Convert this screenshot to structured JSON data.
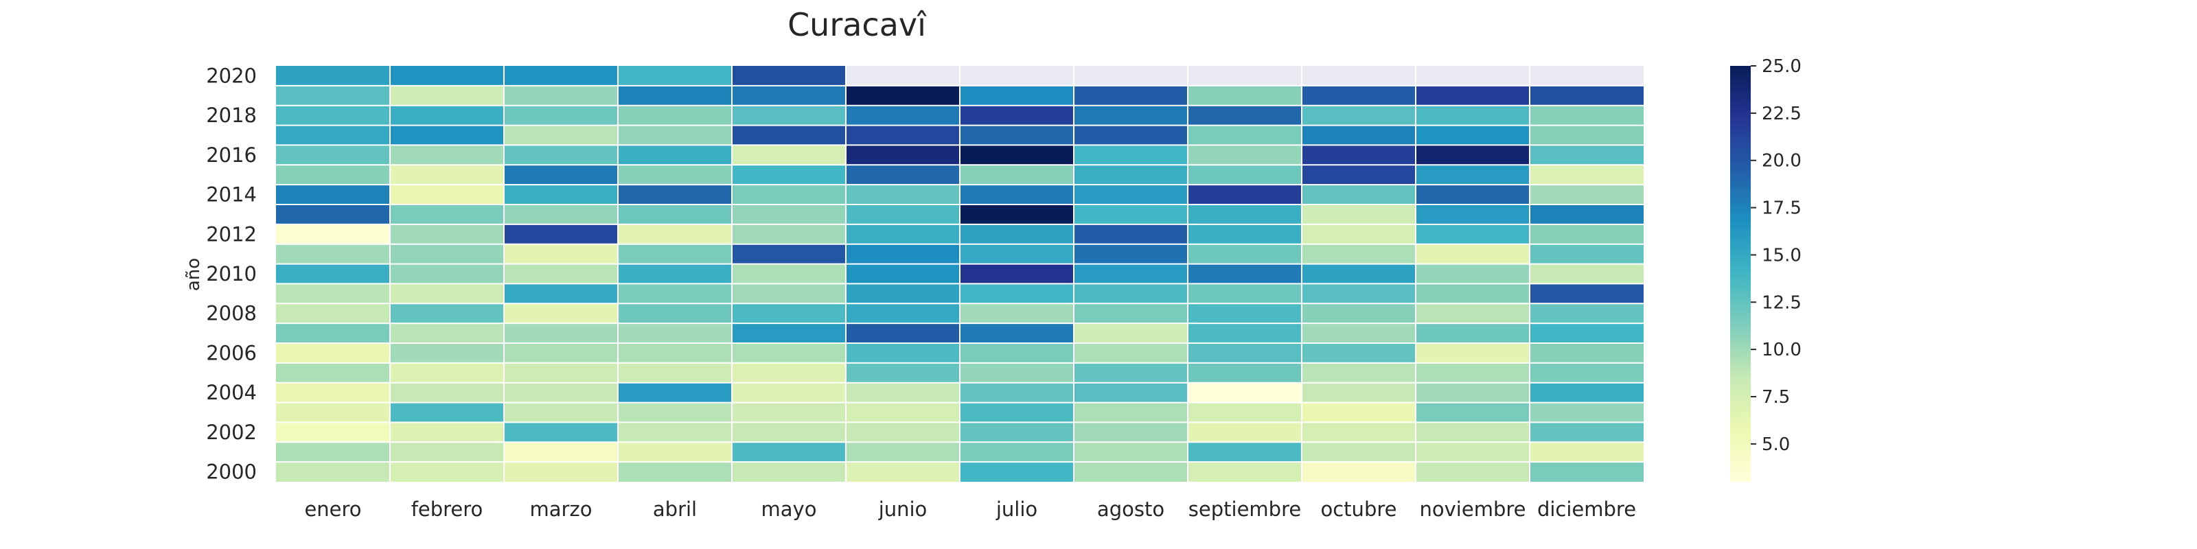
{
  "chart_data": {
    "type": "heatmap",
    "title": "Curacavî",
    "xlabel": "",
    "ylabel": "año",
    "months": [
      "enero",
      "febrero",
      "marzo",
      "abril",
      "mayo",
      "junio",
      "julio",
      "agosto",
      "septiembre",
      "octubre",
      "noviembre",
      "diciembre"
    ],
    "years": [
      2020,
      2019,
      2018,
      2017,
      2016,
      2015,
      2014,
      2013,
      2012,
      2011,
      2010,
      2009,
      2008,
      2007,
      2006,
      2005,
      2004,
      2003,
      2002,
      2001,
      2000
    ],
    "y_tick_labels": [
      "2020",
      "2018",
      "2016",
      "2014",
      "2012",
      "2010",
      "2008",
      "2006",
      "2004",
      "2002",
      "2000"
    ],
    "color_scale": "YlGnBu",
    "vmin": 3.0,
    "vmax": 25.0,
    "colorbar_ticks": [
      "5.0",
      "7.5",
      "10.0",
      "12.5",
      "15.0",
      "17.5",
      "20.0",
      "22.5",
      "25.0"
    ],
    "missing_color": "#eaeaf2",
    "values": [
      [
        15.5,
        16.5,
        16.5,
        14.0,
        20.5,
        null,
        null,
        null,
        null,
        null,
        null,
        null
      ],
      [
        13.0,
        8.0,
        10.5,
        17.5,
        18.0,
        25.0,
        17.0,
        19.5,
        11.0,
        19.5,
        21.5,
        20.5
      ],
      [
        13.5,
        14.5,
        12.0,
        11.0,
        13.0,
        18.0,
        21.5,
        18.0,
        19.0,
        13.0,
        13.5,
        11.0
      ],
      [
        15.0,
        16.5,
        9.0,
        10.5,
        20.5,
        21.0,
        19.0,
        19.5,
        11.5,
        17.5,
        16.5,
        11.0
      ],
      [
        12.5,
        10.0,
        12.5,
        14.5,
        7.5,
        23.5,
        25.0,
        14.0,
        10.5,
        21.5,
        24.0,
        13.0
      ],
      [
        11.0,
        6.5,
        18.0,
        11.0,
        14.0,
        19.0,
        11.0,
        14.5,
        12.0,
        21.0,
        16.0,
        7.0
      ],
      [
        17.5,
        6.0,
        14.5,
        19.0,
        11.5,
        12.5,
        18.0,
        16.0,
        21.5,
        12.5,
        19.0,
        10.0
      ],
      [
        19.0,
        11.5,
        10.5,
        12.0,
        10.5,
        13.5,
        25.0,
        14.0,
        14.5,
        8.0,
        16.0,
        17.5
      ],
      [
        3.5,
        10.0,
        21.0,
        6.5,
        10.0,
        14.5,
        15.5,
        19.5,
        14.5,
        7.5,
        14.0,
        11.0
      ],
      [
        10.0,
        10.5,
        6.5,
        11.5,
        20.0,
        17.0,
        15.0,
        18.5,
        12.0,
        9.5,
        6.5,
        12.5
      ],
      [
        14.5,
        10.5,
        9.0,
        14.5,
        9.5,
        16.5,
        22.5,
        16.0,
        18.0,
        15.5,
        10.5,
        8.5
      ],
      [
        9.0,
        8.0,
        15.0,
        11.5,
        10.0,
        15.5,
        14.0,
        13.5,
        12.0,
        13.0,
        11.0,
        20.0
      ],
      [
        8.5,
        12.5,
        6.5,
        12.0,
        13.5,
        15.0,
        10.0,
        11.5,
        13.5,
        11.0,
        9.0,
        12.5
      ],
      [
        11.5,
        9.0,
        10.0,
        10.0,
        16.0,
        19.5,
        18.0,
        8.0,
        13.5,
        10.0,
        12.0,
        14.0
      ],
      [
        6.0,
        10.0,
        9.5,
        9.5,
        9.5,
        13.5,
        11.5,
        9.5,
        13.0,
        12.5,
        6.5,
        11.0
      ],
      [
        9.5,
        7.0,
        8.0,
        8.0,
        7.0,
        12.5,
        10.5,
        12.5,
        12.0,
        9.0,
        9.5,
        11.5
      ],
      [
        6.0,
        8.5,
        8.5,
        16.0,
        7.0,
        8.5,
        12.5,
        13.0,
        3.0,
        8.5,
        10.0,
        14.5
      ],
      [
        6.5,
        13.5,
        8.5,
        9.0,
        8.0,
        7.5,
        13.5,
        9.5,
        7.5,
        6.0,
        11.5,
        10.5
      ],
      [
        5.0,
        7.0,
        13.5,
        8.5,
        8.5,
        8.5,
        12.5,
        10.0,
        6.5,
        7.5,
        8.5,
        12.5
      ],
      [
        9.5,
        8.5,
        4.5,
        6.5,
        13.5,
        9.5,
        11.5,
        9.5,
        13.5,
        8.5,
        8.0,
        6.5
      ],
      [
        8.5,
        7.5,
        6.5,
        9.5,
        8.5,
        7.0,
        14.0,
        9.5,
        7.5,
        4.5,
        8.5,
        11.5
      ]
    ]
  }
}
